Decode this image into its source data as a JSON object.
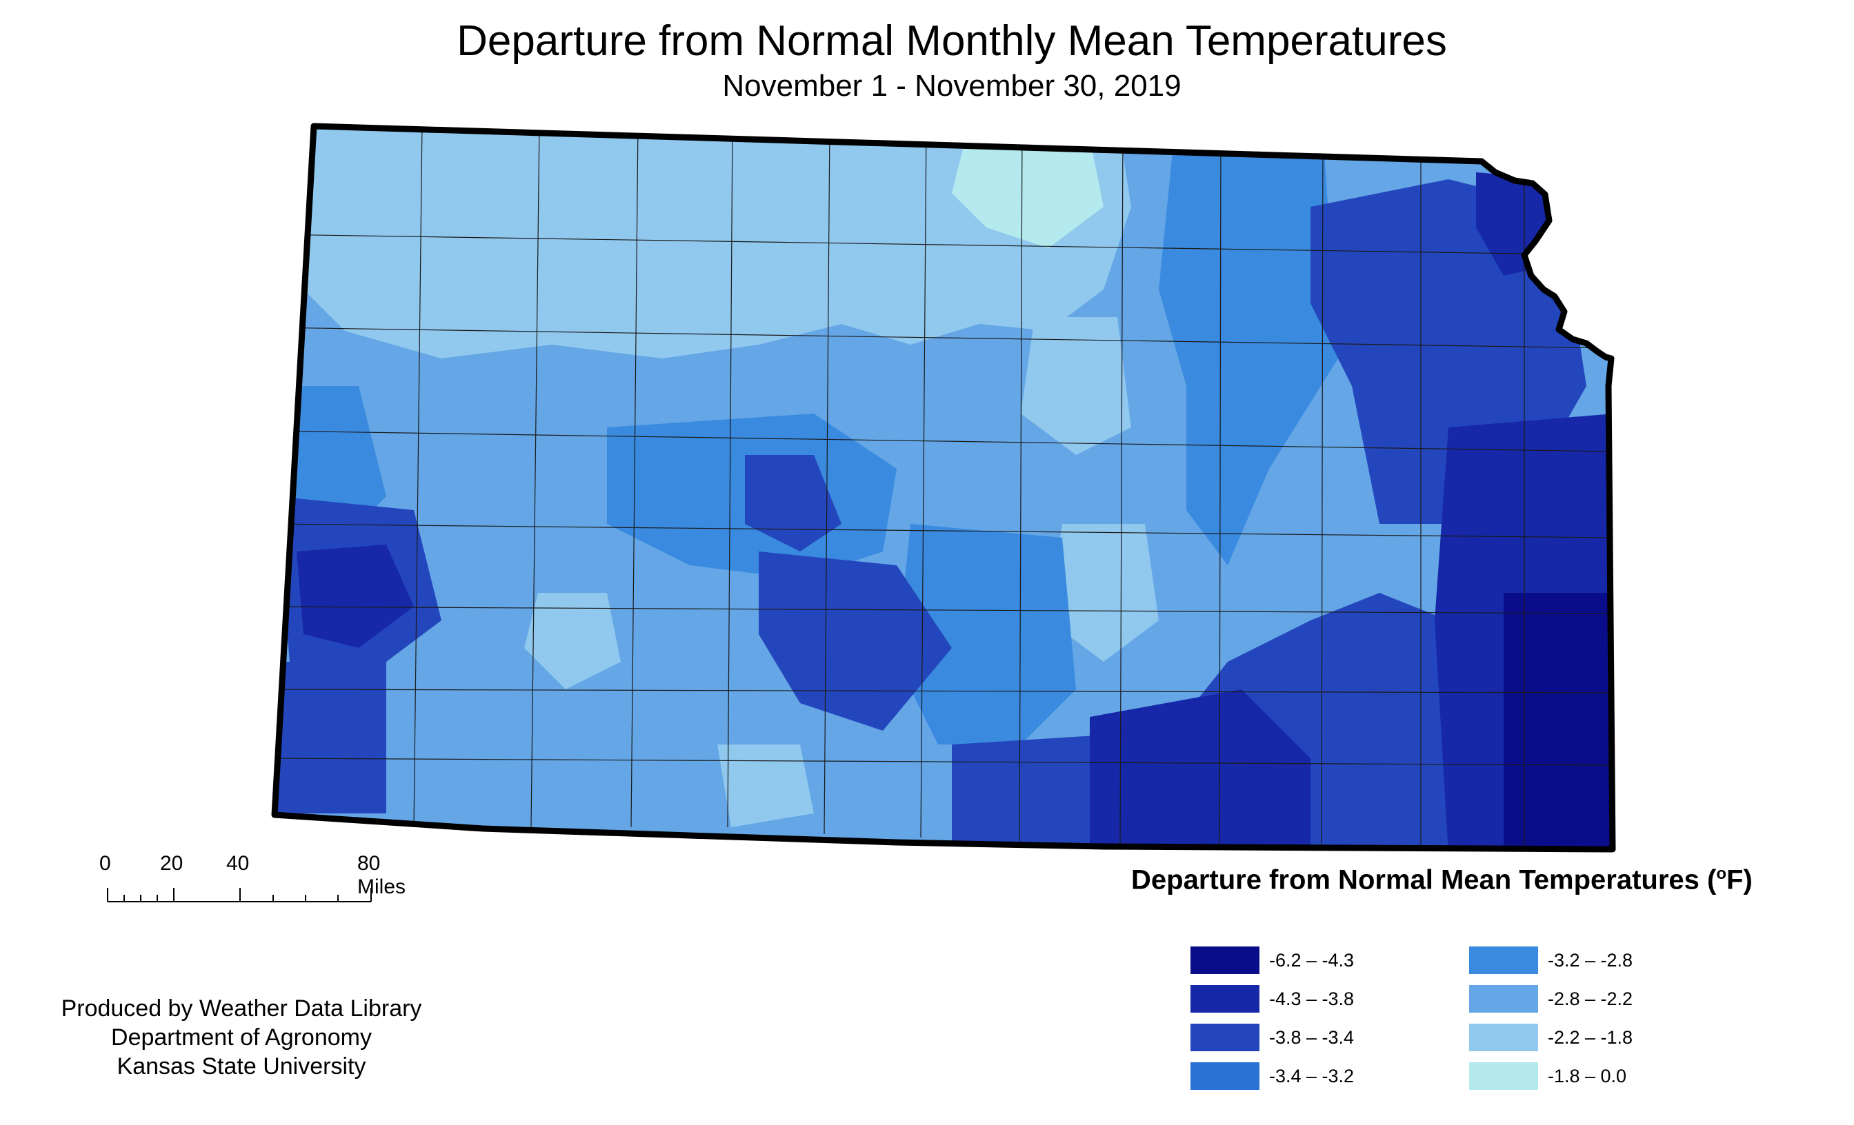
{
  "title": "Departure from Normal Monthly Mean Temperatures",
  "subtitle": "November 1 - November 30, 2019",
  "scale": {
    "ticks": [
      "0",
      "20",
      "40",
      "80 Miles"
    ]
  },
  "credits": {
    "line1": "Produced by Weather Data Library",
    "line2": "Department of Agronomy",
    "line3": "Kansas State University"
  },
  "legend": {
    "title_main": "Departure from Normal Mean Temperatures (",
    "title_sup": "o",
    "title_end": "F)",
    "items": [
      {
        "label": "-6.2 – -4.3",
        "color": "#0a0d8a"
      },
      {
        "label": "-4.3 – -3.8",
        "color": "#1628a8"
      },
      {
        "label": "-3.8 – -3.4",
        "color": "#2446bc"
      },
      {
        "label": "-3.4 – -3.2",
        "color": "#2a72d6"
      },
      {
        "label": "-3.2 – -2.8",
        "color": "#3a8ae0"
      },
      {
        "label": "-2.8 – -2.2",
        "color": "#64a6e6"
      },
      {
        "label": "-2.2 – -1.8",
        "color": "#90c8ee"
      },
      {
        "label": "-1.8 – 0.0",
        "color": "#b4eaee"
      }
    ]
  }
}
